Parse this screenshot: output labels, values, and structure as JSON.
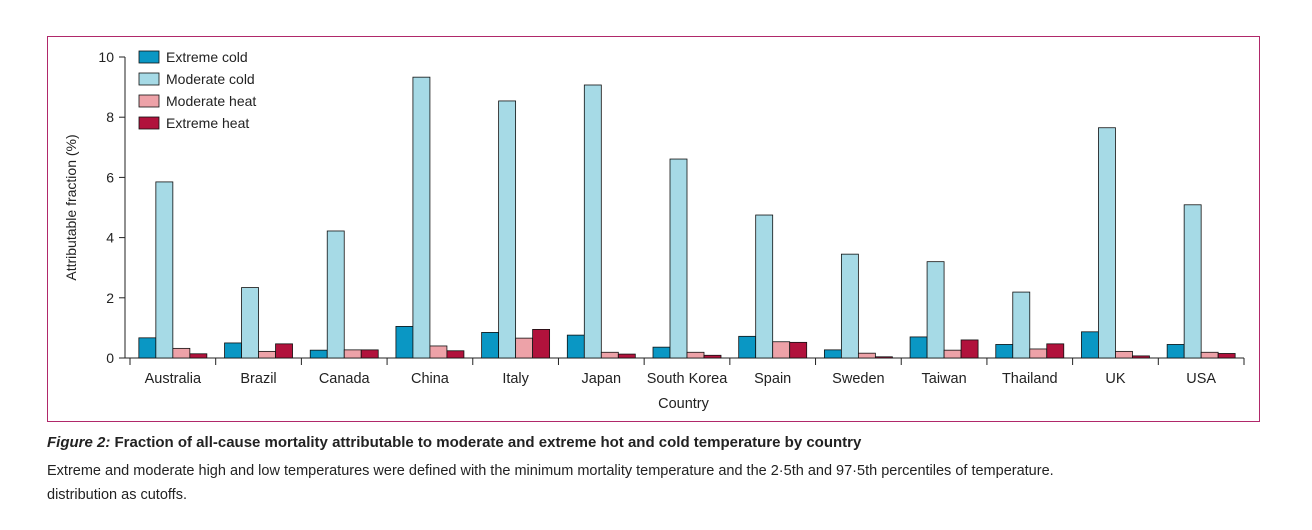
{
  "chart_data": {
    "type": "bar",
    "xlabel": "Country",
    "ylabel": "Attributable fraction (%)",
    "ylim": [
      0,
      10
    ],
    "yticks": [
      0,
      2,
      4,
      6,
      8,
      10
    ],
    "legend_position": "top-left",
    "grid": false,
    "categories": [
      "Australia",
      "Brazil",
      "Canada",
      "China",
      "Italy",
      "Japan",
      "South Korea",
      "Spain",
      "Sweden",
      "Taiwan",
      "Thailand",
      "UK",
      "USA"
    ],
    "series": [
      {
        "name": "Extreme cold",
        "color": "#0a97c4",
        "values": [
          0.67,
          0.5,
          0.26,
          1.05,
          0.85,
          0.76,
          0.36,
          0.72,
          0.27,
          0.7,
          0.45,
          0.87,
          0.45
        ]
      },
      {
        "name": "Moderate cold",
        "color": "#a6dae6",
        "values": [
          5.85,
          2.34,
          4.22,
          9.33,
          8.54,
          9.07,
          6.61,
          4.75,
          3.45,
          3.2,
          2.19,
          7.65,
          5.09
        ]
      },
      {
        "name": "Moderate heat",
        "color": "#eda2a8",
        "values": [
          0.32,
          0.22,
          0.27,
          0.4,
          0.66,
          0.19,
          0.19,
          0.54,
          0.16,
          0.26,
          0.3,
          0.22,
          0.19
        ]
      },
      {
        "name": "Extreme heat",
        "color": "#b1123c",
        "values": [
          0.14,
          0.47,
          0.27,
          0.24,
          0.95,
          0.13,
          0.09,
          0.52,
          0.04,
          0.6,
          0.47,
          0.07,
          0.15
        ]
      }
    ]
  },
  "caption": {
    "figure_label": "Figure 2:",
    "title": "Fraction of all-cause mortality attributable to moderate and extreme hot and cold temperature by country",
    "body_line1": "Extreme and moderate high and low temperatures were defined with the minimum mortality temperature and the 2·5th and 97·5th percentiles of temperature.",
    "body_line2": "distribution as cutoffs."
  }
}
